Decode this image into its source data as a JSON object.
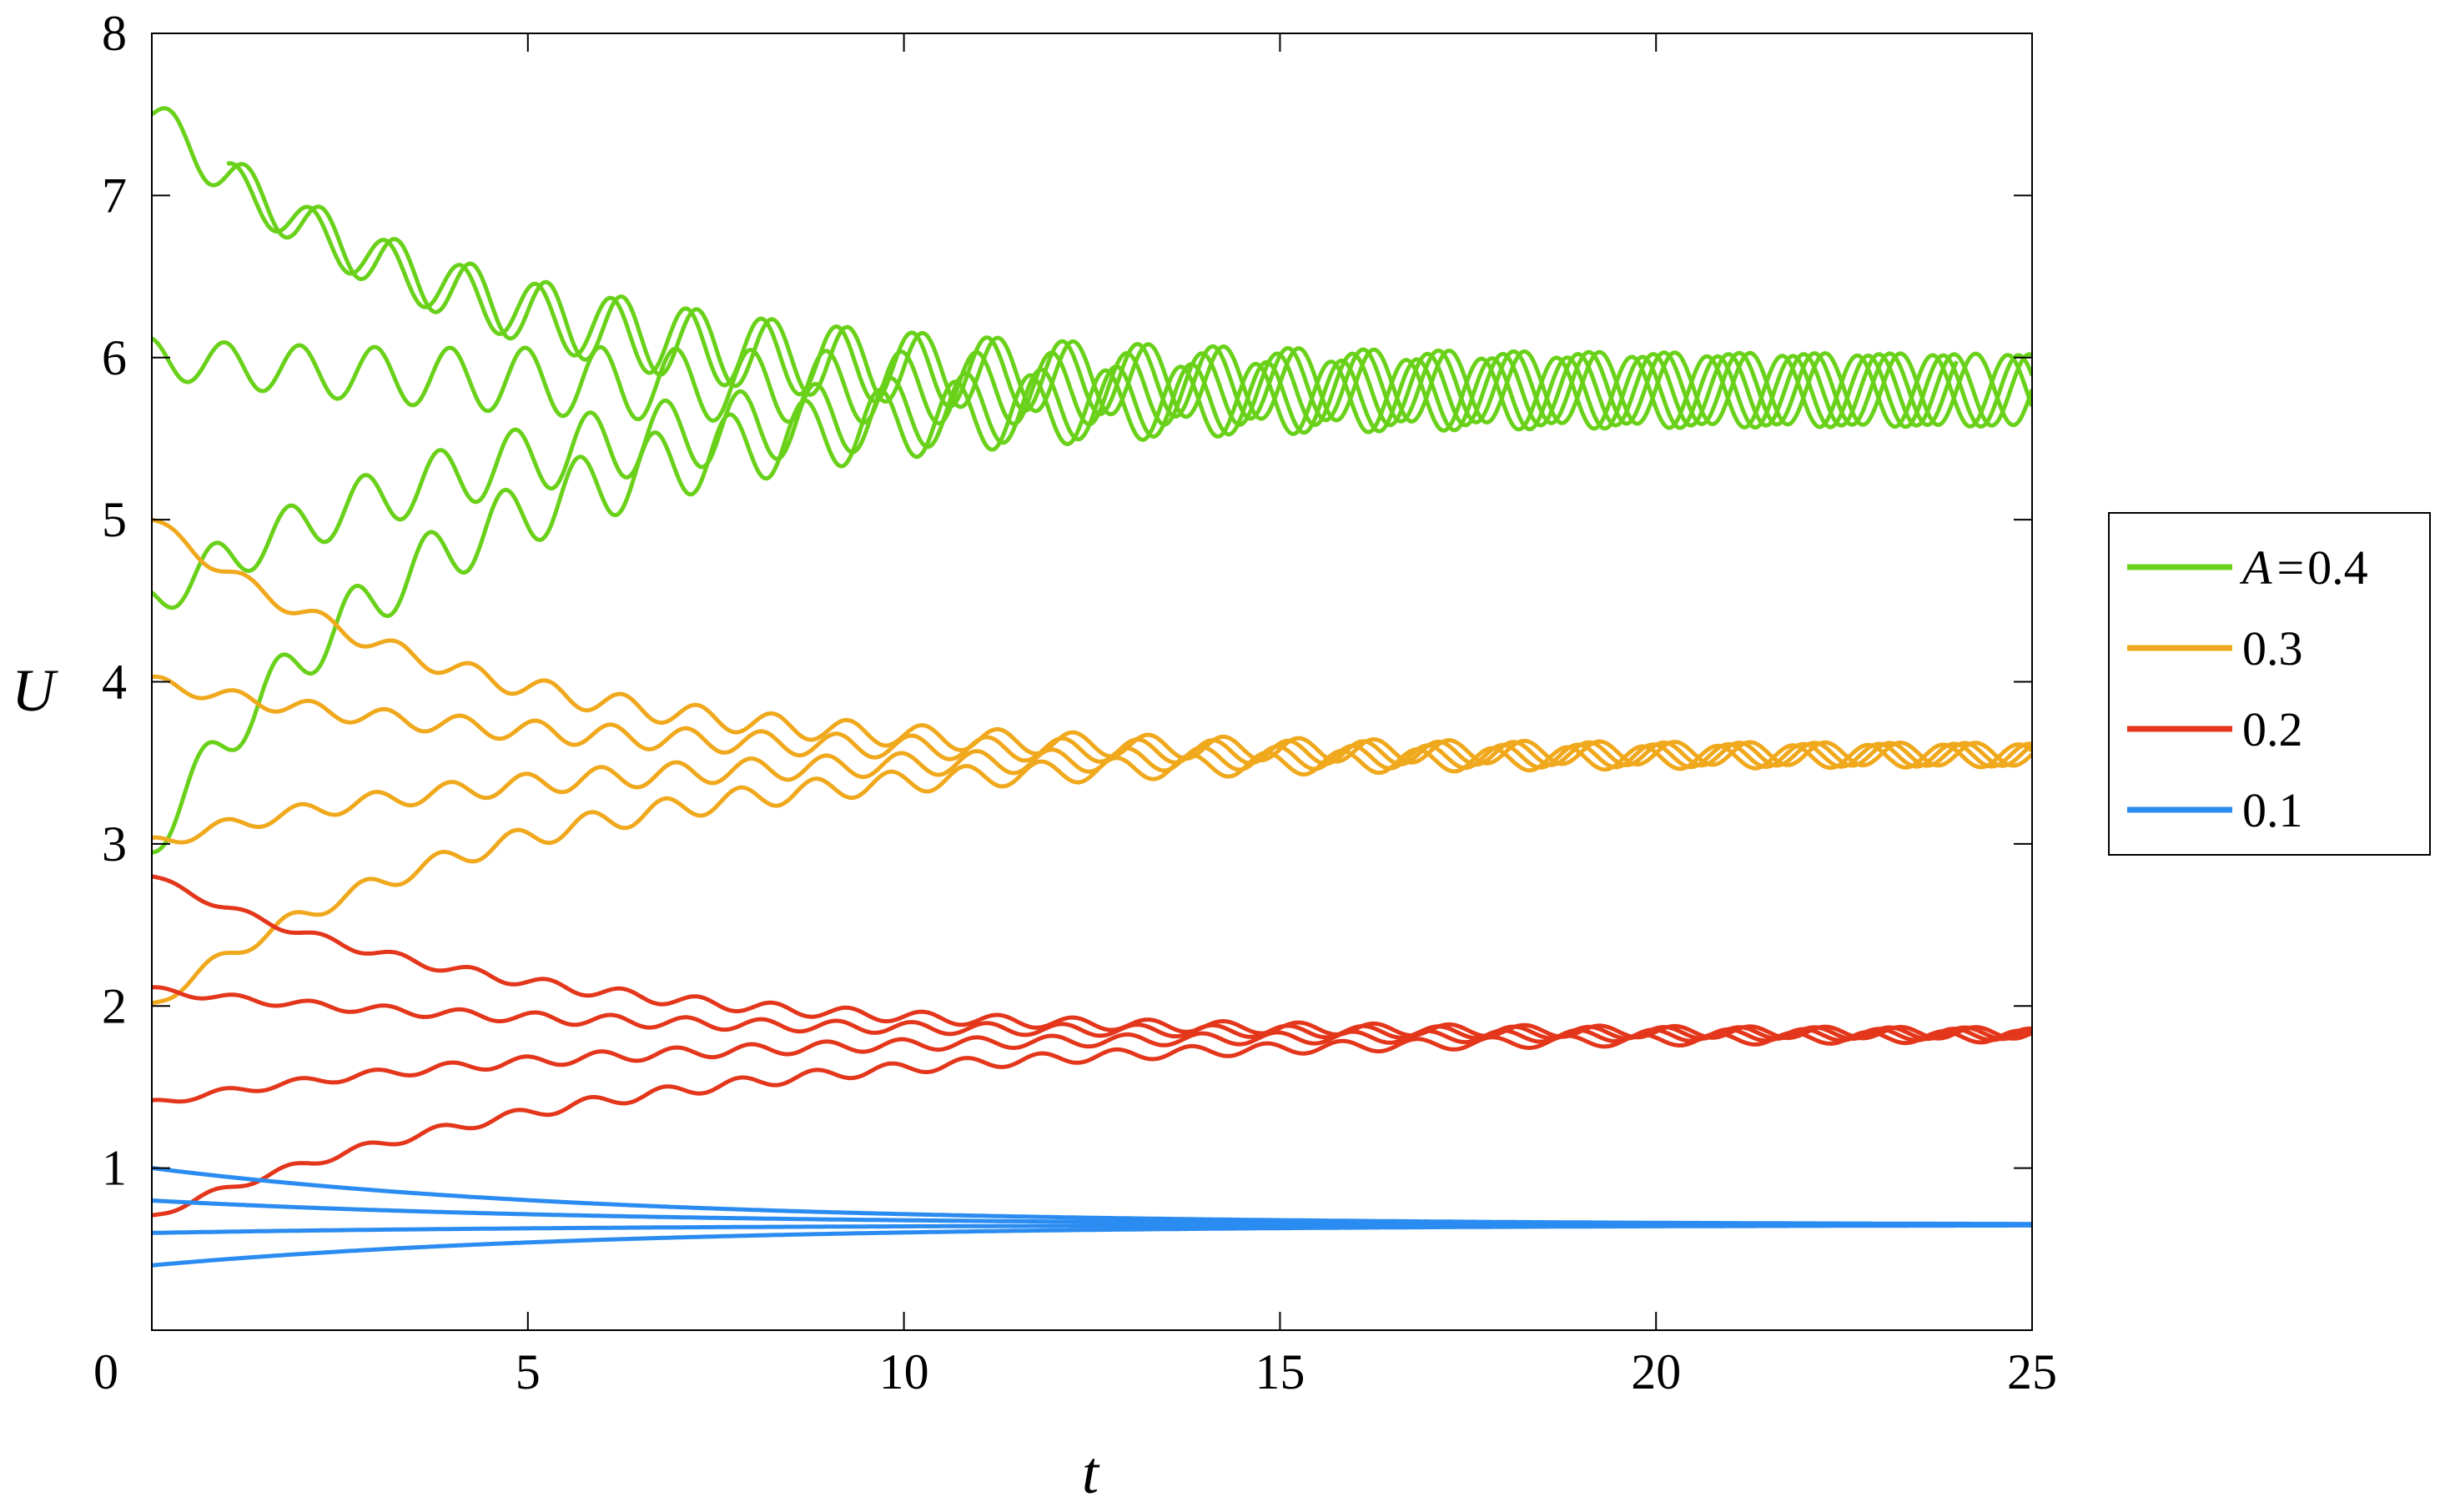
{
  "chart_data": {
    "type": "line",
    "title": "",
    "xlabel": "t",
    "ylabel": "U",
    "xlim": [
      0,
      25
    ],
    "ylim": [
      0,
      8
    ],
    "xticks": [
      "0",
      "5",
      "10",
      "15",
      "20",
      "25"
    ],
    "yticks": [
      "1",
      "2",
      "3",
      "4",
      "5",
      "6",
      "7",
      "8"
    ],
    "grid": false,
    "legend_position": "right",
    "legend_prefix": "A",
    "legend_equals": "=",
    "groups": [
      {
        "label": "0.4",
        "A": 0.4,
        "color": "#6ad11a",
        "final": 5.8,
        "osc_amp": 0.22,
        "osc_period": 1.0,
        "curves": [
          {
            "start": 7.5,
            "t0": 0.0,
            "tau": 4.0,
            "t_end": 25
          },
          {
            "start": 7.1,
            "t0": 1.0,
            "tau": 4.0,
            "t_end": 24
          },
          {
            "start": 6.0,
            "t0": 0.0,
            "tau": 4.0,
            "t_end": 25
          },
          {
            "start": 4.5,
            "t0": 0.0,
            "tau": 4.5,
            "t_end": 25
          },
          {
            "start": 3.0,
            "t0": 0.0,
            "tau": 3.8,
            "t_end": 25
          }
        ]
      },
      {
        "label": "0.3",
        "A": 0.3,
        "color": "#f0a81c",
        "final": 3.55,
        "osc_amp": 0.07,
        "osc_period": 1.0,
        "curves": [
          {
            "start": 5.0,
            "t0": 0.0,
            "tau": 4.0,
            "t_end": 25
          },
          {
            "start": 4.0,
            "t0": 0.0,
            "tau": 4.5,
            "t_end": 25
          },
          {
            "start": 3.0,
            "t0": 0.0,
            "tau": 4.5,
            "t_end": 25
          },
          {
            "start": 2.0,
            "t0": 0.0,
            "tau": 4.5,
            "t_end": 25
          }
        ]
      },
      {
        "label": "0.2",
        "A": 0.2,
        "color": "#e3361b",
        "final": 1.83,
        "osc_amp": 0.035,
        "osc_period": 1.0,
        "curves": [
          {
            "start": 2.8,
            "t0": 0.0,
            "tau": 4.5,
            "t_end": 25
          },
          {
            "start": 2.1,
            "t0": 0.0,
            "tau": 5.0,
            "t_end": 25
          },
          {
            "start": 1.4,
            "t0": 0.0,
            "tau": 5.5,
            "t_end": 25
          },
          {
            "start": 0.7,
            "t0": 0.0,
            "tau": 6.0,
            "t_end": 25
          }
        ]
      },
      {
        "label": "0.1",
        "A": 0.1,
        "color": "#2a8cf0",
        "final": 0.65,
        "osc_amp": 0.0,
        "osc_period": 1.0,
        "curves": [
          {
            "start": 1.0,
            "t0": 0.0,
            "tau": 6.0,
            "t_end": 25
          },
          {
            "start": 0.8,
            "t0": 0.0,
            "tau": 6.0,
            "t_end": 25
          },
          {
            "start": 0.6,
            "t0": 0.0,
            "tau": 6.0,
            "t_end": 25
          },
          {
            "start": 0.4,
            "t0": 0.0,
            "tau": 6.0,
            "t_end": 25
          }
        ]
      }
    ]
  }
}
